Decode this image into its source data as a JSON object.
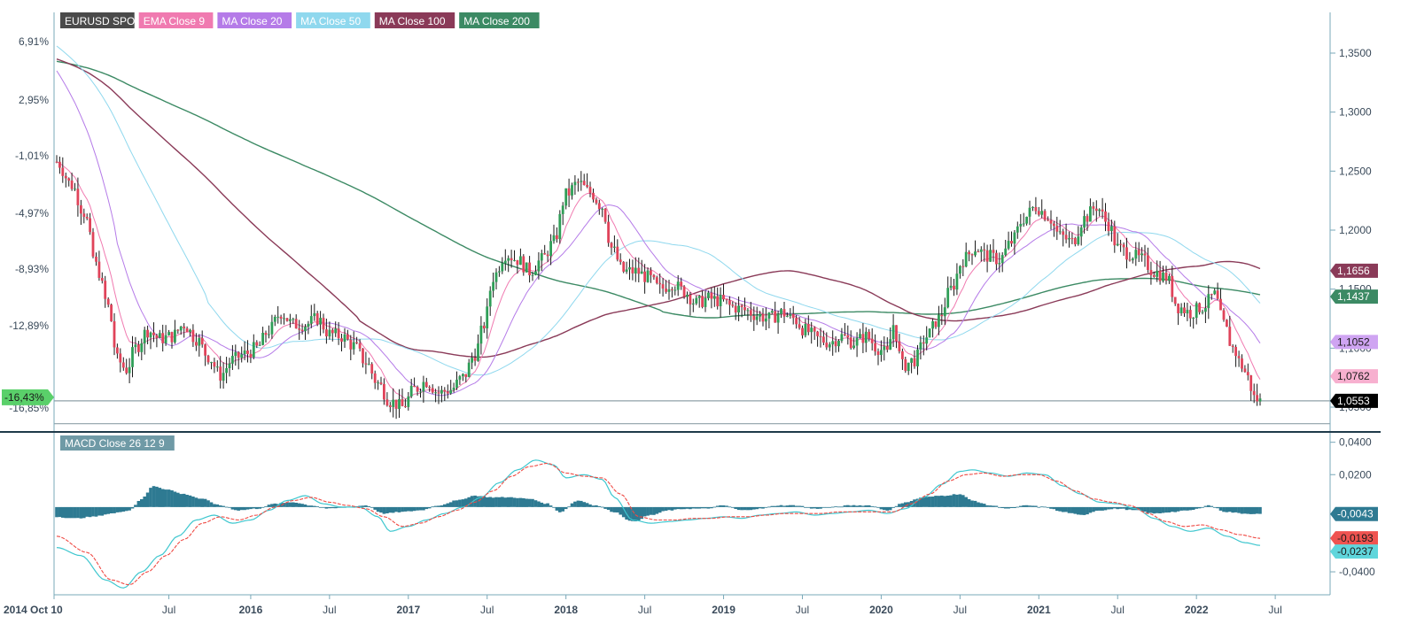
{
  "chart_data": [
    {
      "type": "candlestick",
      "title": "EURUSD SPOT",
      "legend": [
        {
          "label": "EURUSD SPOT",
          "bg": "#4a4a4a",
          "fg": "#ffffff"
        },
        {
          "label": "EMA Close 9",
          "bg": "#f07ab0",
          "fg": "#ffffff"
        },
        {
          "label": "MA Close 20",
          "bg": "#b57be8",
          "fg": "#ffffff"
        },
        {
          "label": "MA Close 50",
          "bg": "#8fd8ee",
          "fg": "#ffffff"
        },
        {
          "label": "MA Close 100",
          "bg": "#8a3a58",
          "fg": "#ffffff"
        },
        {
          "label": "MA Close 200",
          "bg": "#3c8a64",
          "fg": "#ffffff"
        }
      ],
      "left_axis_ticks": [
        "6,91%",
        "2,95%",
        "-1,01%",
        "-4,97%",
        "-8,93%",
        "-12,89%",
        "-16,85%"
      ],
      "right_axis_ticks": [
        "1,3500",
        "1,3000",
        "1,2500",
        "1,2000",
        "1,1500",
        "1,1000",
        "1,0500"
      ],
      "ylim": [
        1.035,
        1.38
      ],
      "x_ticks": [
        "2014 Oct 10",
        "Jul",
        "2016",
        "Jul",
        "2017",
        "Jul",
        "2018",
        "Jul",
        "2019",
        "Jul",
        "2020",
        "Jul",
        "2021",
        "Jul",
        "2022",
        "Jul"
      ],
      "x_tick_values": [
        0,
        37,
        64,
        90,
        116,
        142,
        168,
        194,
        220,
        246,
        272,
        298,
        324,
        350,
        376,
        402
      ],
      "close_anchors": [
        [
          0,
          1.258
        ],
        [
          5,
          1.238
        ],
        [
          9,
          1.215
        ],
        [
          13,
          1.17
        ],
        [
          17,
          1.135
        ],
        [
          20,
          1.09
        ],
        [
          23,
          1.082
        ],
        [
          26,
          1.1
        ],
        [
          30,
          1.115
        ],
        [
          34,
          1.108
        ],
        [
          38,
          1.11
        ],
        [
          42,
          1.12
        ],
        [
          46,
          1.108
        ],
        [
          50,
          1.093
        ],
        [
          54,
          1.077
        ],
        [
          58,
          1.09
        ],
        [
          62,
          1.095
        ],
        [
          66,
          1.1
        ],
        [
          70,
          1.115
        ],
        [
          74,
          1.13
        ],
        [
          78,
          1.12
        ],
        [
          82,
          1.12
        ],
        [
          86,
          1.125
        ],
        [
          90,
          1.112
        ],
        [
          94,
          1.11
        ],
        [
          98,
          1.102
        ],
        [
          102,
          1.088
        ],
        [
          106,
          1.07
        ],
        [
          110,
          1.055
        ],
        [
          114,
          1.05
        ],
        [
          118,
          1.065
        ],
        [
          122,
          1.072
        ],
        [
          126,
          1.062
        ],
        [
          130,
          1.065
        ],
        [
          134,
          1.075
        ],
        [
          138,
          1.095
        ],
        [
          141,
          1.12
        ],
        [
          144,
          1.16
        ],
        [
          148,
          1.18
        ],
        [
          152,
          1.175
        ],
        [
          156,
          1.165
        ],
        [
          160,
          1.175
        ],
        [
          164,
          1.19
        ],
        [
          168,
          1.23
        ],
        [
          172,
          1.24
        ],
        [
          176,
          1.232
        ],
        [
          180,
          1.22
        ],
        [
          183,
          1.185
        ],
        [
          187,
          1.165
        ],
        [
          191,
          1.165
        ],
        [
          195,
          1.16
        ],
        [
          199,
          1.15
        ],
        [
          203,
          1.155
        ],
        [
          207,
          1.148
        ],
        [
          211,
          1.138
        ],
        [
          215,
          1.142
        ],
        [
          219,
          1.14
        ],
        [
          223,
          1.135
        ],
        [
          227,
          1.132
        ],
        [
          231,
          1.128
        ],
        [
          235,
          1.125
        ],
        [
          239,
          1.13
        ],
        [
          243,
          1.125
        ],
        [
          247,
          1.115
        ],
        [
          251,
          1.108
        ],
        [
          255,
          1.105
        ],
        [
          259,
          1.11
        ],
        [
          263,
          1.105
        ],
        [
          267,
          1.11
        ],
        [
          271,
          1.1
        ],
        [
          274,
          1.095
        ],
        [
          276,
          1.12
        ],
        [
          279,
          1.085
        ],
        [
          283,
          1.09
        ],
        [
          287,
          1.11
        ],
        [
          291,
          1.125
        ],
        [
          295,
          1.15
        ],
        [
          299,
          1.175
        ],
        [
          303,
          1.185
        ],
        [
          307,
          1.178
        ],
        [
          311,
          1.175
        ],
        [
          315,
          1.19
        ],
        [
          319,
          1.21
        ],
        [
          323,
          1.22
        ],
        [
          327,
          1.212
        ],
        [
          331,
          1.195
        ],
        [
          335,
          1.19
        ],
        [
          339,
          1.21
        ],
        [
          343,
          1.22
        ],
        [
          347,
          1.205
        ],
        [
          350,
          1.185
        ],
        [
          354,
          1.18
        ],
        [
          358,
          1.175
        ],
        [
          362,
          1.165
        ],
        [
          366,
          1.16
        ],
        [
          370,
          1.135
        ],
        [
          374,
          1.13
        ],
        [
          378,
          1.135
        ],
        [
          382,
          1.145
        ],
        [
          385,
          1.12
        ],
        [
          388,
          1.1
        ],
        [
          391,
          1.085
        ],
        [
          393,
          1.075
        ],
        [
          395,
          1.058
        ],
        [
          397,
          1.055
        ]
      ],
      "annotations": [
        {
          "label": "1,1656",
          "value": 1.1656,
          "bg": "#8a3a58",
          "fg": "#ffffff"
        },
        {
          "label": "1,1437",
          "value": 1.1437,
          "bg": "#3c8a64",
          "fg": "#ffffff"
        },
        {
          "label": "1,1052",
          "value": 1.1052,
          "bg": "#cfa4f2",
          "fg": "#1a1a1a"
        },
        {
          "label": "1,0762",
          "value": 1.0762,
          "bg": "#f7b0cf",
          "fg": "#1a1a1a"
        },
        {
          "label": "1,0553",
          "value": 1.0553,
          "bg": "#000000",
          "fg": "#ffffff"
        }
      ],
      "left_marker": {
        "label": "-16,43%",
        "bg": "#5ad06a",
        "fg": "#1a1a1a"
      },
      "support_lines": [
        1.0553,
        1.036
      ]
    },
    {
      "type": "macd",
      "title": "MACD Close 26 12 9",
      "right_axis_ticks": [
        "0,0400",
        "0,0200",
        "-0,0400"
      ],
      "ylim": [
        -0.052,
        0.042
      ],
      "annotations": [
        {
          "label": "-0,0043",
          "value": -0.0043,
          "bg": "#2e7a92",
          "fg": "#ffffff"
        },
        {
          "label": "-0,0193",
          "value": -0.0193,
          "bg": "#ef5350",
          "fg": "#1a1a1a"
        },
        {
          "label": "-0,0237",
          "value": -0.0237,
          "bg": "#5fd6dc",
          "fg": "#1a1a1a"
        }
      ],
      "macd_anchors": [
        [
          0,
          -0.025
        ],
        [
          8,
          -0.03
        ],
        [
          16,
          -0.045
        ],
        [
          22,
          -0.05
        ],
        [
          28,
          -0.04
        ],
        [
          34,
          -0.03
        ],
        [
          40,
          -0.018
        ],
        [
          46,
          -0.008
        ],
        [
          52,
          -0.005
        ],
        [
          58,
          -0.01
        ],
        [
          64,
          -0.008
        ],
        [
          70,
          -0.002
        ],
        [
          76,
          0.004
        ],
        [
          82,
          0.007
        ],
        [
          88,
          0.002
        ],
        [
          94,
          0.0
        ],
        [
          100,
          0.0
        ],
        [
          106,
          -0.006
        ],
        [
          110,
          -0.015
        ],
        [
          116,
          -0.012
        ],
        [
          122,
          -0.008
        ],
        [
          128,
          -0.004
        ],
        [
          134,
          0.0
        ],
        [
          140,
          0.006
        ],
        [
          146,
          0.015
        ],
        [
          152,
          0.023
        ],
        [
          158,
          0.029
        ],
        [
          164,
          0.026
        ],
        [
          168,
          0.018
        ],
        [
          174,
          0.02
        ],
        [
          180,
          0.017
        ],
        [
          184,
          0.006
        ],
        [
          190,
          -0.008
        ],
        [
          196,
          -0.01
        ],
        [
          202,
          -0.009
        ],
        [
          208,
          -0.008
        ],
        [
          214,
          -0.007
        ],
        [
          220,
          -0.006
        ],
        [
          226,
          -0.007
        ],
        [
          232,
          -0.005
        ],
        [
          238,
          -0.004
        ],
        [
          244,
          -0.003
        ],
        [
          250,
          -0.005
        ],
        [
          256,
          -0.004
        ],
        [
          262,
          -0.003
        ],
        [
          268,
          -0.002
        ],
        [
          274,
          -0.004
        ],
        [
          280,
          -0.001
        ],
        [
          286,
          0.006
        ],
        [
          292,
          0.014
        ],
        [
          298,
          0.022
        ],
        [
          302,
          0.023
        ],
        [
          308,
          0.021
        ],
        [
          314,
          0.019
        ],
        [
          320,
          0.021
        ],
        [
          326,
          0.02
        ],
        [
          332,
          0.013
        ],
        [
          338,
          0.008
        ],
        [
          344,
          0.003
        ],
        [
          350,
          0.002
        ],
        [
          356,
          -0.001
        ],
        [
          362,
          -0.007
        ],
        [
          368,
          -0.012
        ],
        [
          374,
          -0.015
        ],
        [
          380,
          -0.013
        ],
        [
          386,
          -0.018
        ],
        [
          392,
          -0.022
        ],
        [
          397,
          -0.0237
        ]
      ],
      "signal_anchors": [
        [
          0,
          -0.018
        ],
        [
          10,
          -0.028
        ],
        [
          18,
          -0.045
        ],
        [
          24,
          -0.048
        ],
        [
          30,
          -0.04
        ],
        [
          36,
          -0.03
        ],
        [
          42,
          -0.02
        ],
        [
          48,
          -0.01
        ],
        [
          54,
          -0.006
        ],
        [
          60,
          -0.008
        ],
        [
          66,
          -0.005
        ],
        [
          72,
          0.0
        ],
        [
          78,
          0.004
        ],
        [
          84,
          0.006
        ],
        [
          90,
          0.003
        ],
        [
          96,
          0.001
        ],
        [
          102,
          -0.001
        ],
        [
          108,
          -0.006
        ],
        [
          114,
          -0.012
        ],
        [
          120,
          -0.01
        ],
        [
          126,
          -0.006
        ],
        [
          132,
          -0.002
        ],
        [
          138,
          0.003
        ],
        [
          144,
          0.01
        ],
        [
          150,
          0.019
        ],
        [
          156,
          0.025
        ],
        [
          162,
          0.027
        ],
        [
          168,
          0.021
        ],
        [
          174,
          0.019
        ],
        [
          180,
          0.018
        ],
        [
          186,
          0.008
        ],
        [
          192,
          -0.006
        ],
        [
          198,
          -0.008
        ],
        [
          204,
          -0.008
        ],
        [
          210,
          -0.007
        ],
        [
          216,
          -0.007
        ],
        [
          222,
          -0.006
        ],
        [
          228,
          -0.006
        ],
        [
          234,
          -0.005
        ],
        [
          240,
          -0.004
        ],
        [
          246,
          -0.004
        ],
        [
          252,
          -0.004
        ],
        [
          258,
          -0.003
        ],
        [
          264,
          -0.003
        ],
        [
          270,
          -0.003
        ],
        [
          276,
          -0.003
        ],
        [
          282,
          0.002
        ],
        [
          288,
          0.008
        ],
        [
          294,
          0.016
        ],
        [
          300,
          0.02
        ],
        [
          306,
          0.021
        ],
        [
          312,
          0.019
        ],
        [
          318,
          0.02
        ],
        [
          324,
          0.02
        ],
        [
          330,
          0.016
        ],
        [
          336,
          0.01
        ],
        [
          342,
          0.005
        ],
        [
          348,
          0.003
        ],
        [
          354,
          0.001
        ],
        [
          360,
          -0.004
        ],
        [
          366,
          -0.009
        ],
        [
          372,
          -0.012
        ],
        [
          378,
          -0.011
        ],
        [
          384,
          -0.014
        ],
        [
          390,
          -0.017
        ],
        [
          397,
          -0.0193
        ]
      ],
      "histogram_anchors": [
        [
          0,
          -0.006
        ],
        [
          6,
          -0.007
        ],
        [
          12,
          -0.006
        ],
        [
          18,
          -0.004
        ],
        [
          24,
          -0.002
        ],
        [
          28,
          0.005
        ],
        [
          32,
          0.013
        ],
        [
          36,
          0.011
        ],
        [
          42,
          0.008
        ],
        [
          48,
          0.005
        ],
        [
          54,
          0.001
        ],
        [
          60,
          -0.002
        ],
        [
          66,
          -0.001
        ],
        [
          72,
          0.002
        ],
        [
          78,
          0.003
        ],
        [
          84,
          0.001
        ],
        [
          90,
          -0.001
        ],
        [
          96,
          0.0
        ],
        [
          102,
          0.001
        ],
        [
          108,
          -0.004
        ],
        [
          114,
          -0.003
        ],
        [
          120,
          -0.002
        ],
        [
          126,
          0.001
        ],
        [
          132,
          0.004
        ],
        [
          138,
          0.007
        ],
        [
          144,
          0.006
        ],
        [
          150,
          0.006
        ],
        [
          156,
          0.005
        ],
        [
          162,
          0.002
        ],
        [
          166,
          -0.003
        ],
        [
          172,
          0.004
        ],
        [
          178,
          0.001
        ],
        [
          184,
          -0.003
        ],
        [
          190,
          -0.009
        ],
        [
          196,
          -0.005
        ],
        [
          202,
          -0.002
        ],
        [
          208,
          -0.001
        ],
        [
          214,
          -0.001
        ],
        [
          220,
          0.001
        ],
        [
          226,
          -0.002
        ],
        [
          232,
          -0.001
        ],
        [
          238,
          0.001
        ],
        [
          244,
          0.001
        ],
        [
          250,
          -0.001
        ],
        [
          256,
          0.0
        ],
        [
          262,
          0.001
        ],
        [
          268,
          0.001
        ],
        [
          274,
          -0.002
        ],
        [
          280,
          0.003
        ],
        [
          286,
          0.006
        ],
        [
          292,
          0.007
        ],
        [
          298,
          0.008
        ],
        [
          302,
          0.004
        ],
        [
          308,
          0.001
        ],
        [
          314,
          -0.001
        ],
        [
          320,
          0.001
        ],
        [
          326,
          0.0
        ],
        [
          332,
          -0.003
        ],
        [
          338,
          -0.005
        ],
        [
          344,
          -0.002
        ],
        [
          350,
          -0.001
        ],
        [
          356,
          -0.002
        ],
        [
          362,
          -0.004
        ],
        [
          368,
          -0.003
        ],
        [
          374,
          -0.002
        ],
        [
          380,
          0.001
        ],
        [
          386,
          -0.003
        ],
        [
          392,
          -0.004
        ],
        [
          397,
          -0.0043
        ]
      ]
    }
  ]
}
